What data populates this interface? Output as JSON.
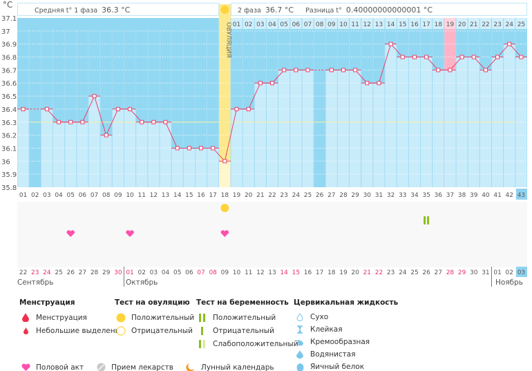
{
  "header": {
    "unit": "°C",
    "phase1_label": "Средняя t° 1 фаза",
    "phase1_value": "36.3 °C",
    "phase2_label": "2 фаза",
    "phase2_value": "36.7 °C",
    "diff_label": "Разница t°",
    "diff_value": "0.40000000000001 °C",
    "ovulation_label": "ОВУЛЯЦИЯ"
  },
  "colors": {
    "line": "#e8406a",
    "bg": "#93d8f2",
    "bar": "#c9ecfb",
    "ovulation": "#fce98e",
    "pink": "#ffb3c6",
    "heart": "#ff4fae",
    "sun": "#ffd43b",
    "test": "#8cbc1c"
  },
  "chart_data": {
    "type": "line",
    "title": "",
    "ylabel": "°C",
    "ylim": [
      35.8,
      37.1
    ],
    "yticks": [
      "37.1",
      "37",
      "36.9",
      "36.8",
      "36.7",
      "36.6",
      "36.5",
      "36.4",
      "36.3",
      "36.2",
      "36.1",
      "36",
      "35.9",
      "35.8"
    ],
    "cycle_days": [
      "01",
      "02",
      "03",
      "04",
      "05",
      "06",
      "07",
      "08",
      "09",
      "10",
      "11",
      "12",
      "13",
      "14",
      "15",
      "16",
      "17",
      "18",
      "19",
      "20",
      "21",
      "22",
      "23",
      "24",
      "25",
      "26",
      "27",
      "28",
      "29",
      "30",
      "31",
      "32",
      "33",
      "34",
      "35",
      "36",
      "37",
      "38",
      "39",
      "40",
      "41",
      "42",
      "43"
    ],
    "temperatures": [
      36.4,
      null,
      36.4,
      36.3,
      36.3,
      36.3,
      36.5,
      36.2,
      36.4,
      36.4,
      36.3,
      36.3,
      36.3,
      36.1,
      36.1,
      36.1,
      36.1,
      36.0,
      36.4,
      36.4,
      36.6,
      36.6,
      36.7,
      36.7,
      36.7,
      null,
      36.7,
      36.7,
      36.7,
      36.6,
      36.6,
      36.9,
      36.8,
      36.8,
      36.8,
      36.7,
      36.7,
      36.8,
      36.8,
      36.7,
      36.8,
      36.9,
      36.8
    ],
    "coverline": 36.3,
    "ovulation_day": 18,
    "highlight_day": 37,
    "current_day": 43,
    "phase2_days": [
      "01",
      "02",
      "03",
      "04",
      "05",
      "06",
      "07",
      "08",
      "09",
      "10",
      "11",
      "12",
      "13",
      "14",
      "15",
      "16",
      "17",
      "18",
      "19",
      "20",
      "21",
      "22",
      "23",
      "24",
      "25"
    ],
    "dates": [
      "22",
      "23",
      "24",
      "25",
      "26",
      "27",
      "28",
      "29",
      "30",
      "01",
      "02",
      "03",
      "04",
      "05",
      "06",
      "07",
      "08",
      "09",
      "10",
      "11",
      "12",
      "13",
      "14",
      "15",
      "16",
      "17",
      "18",
      "19",
      "20",
      "21",
      "22",
      "23",
      "24",
      "25",
      "26",
      "27",
      "28",
      "29",
      "30",
      "31",
      "01",
      "02",
      "03"
    ],
    "weekend": [
      false,
      true,
      true,
      false,
      false,
      false,
      false,
      false,
      true,
      true,
      false,
      false,
      false,
      false,
      false,
      true,
      true,
      false,
      false,
      false,
      false,
      false,
      true,
      true,
      false,
      false,
      false,
      false,
      false,
      true,
      true,
      false,
      false,
      false,
      false,
      false,
      true,
      true,
      false,
      false,
      false,
      false,
      false
    ],
    "months": [
      {
        "name": "Сентябрь",
        "start": 1
      },
      {
        "name": "Октябрь",
        "start": 10
      },
      {
        "name": "Ноябрь",
        "start": 41
      }
    ],
    "events": {
      "sex_days": [
        5,
        10,
        18
      ],
      "ovulation_test_positive_days": [
        18
      ],
      "pregnancy_test_positive_days": [
        35
      ]
    }
  },
  "legend": {
    "menstruation": {
      "title": "Менструация",
      "items": [
        "Менструация",
        "Небольшие выделения"
      ]
    },
    "ovulation_test": {
      "title": "Тест на овуляцию",
      "items": [
        "Положительный",
        "Отрицательный"
      ]
    },
    "pregnancy_test": {
      "title": "Тест на беременность",
      "items": [
        "Положительный",
        "Отрицательный",
        "Слабоположительный"
      ]
    },
    "cervical": {
      "title": "Цервикальная жидкость",
      "items": [
        "Сухо",
        "Клейкая",
        "Кремообразная",
        "Водянистая",
        "Яичный белок"
      ]
    },
    "other": [
      "Половой акт",
      "Прием лекарств",
      "Лунный календарь"
    ]
  }
}
